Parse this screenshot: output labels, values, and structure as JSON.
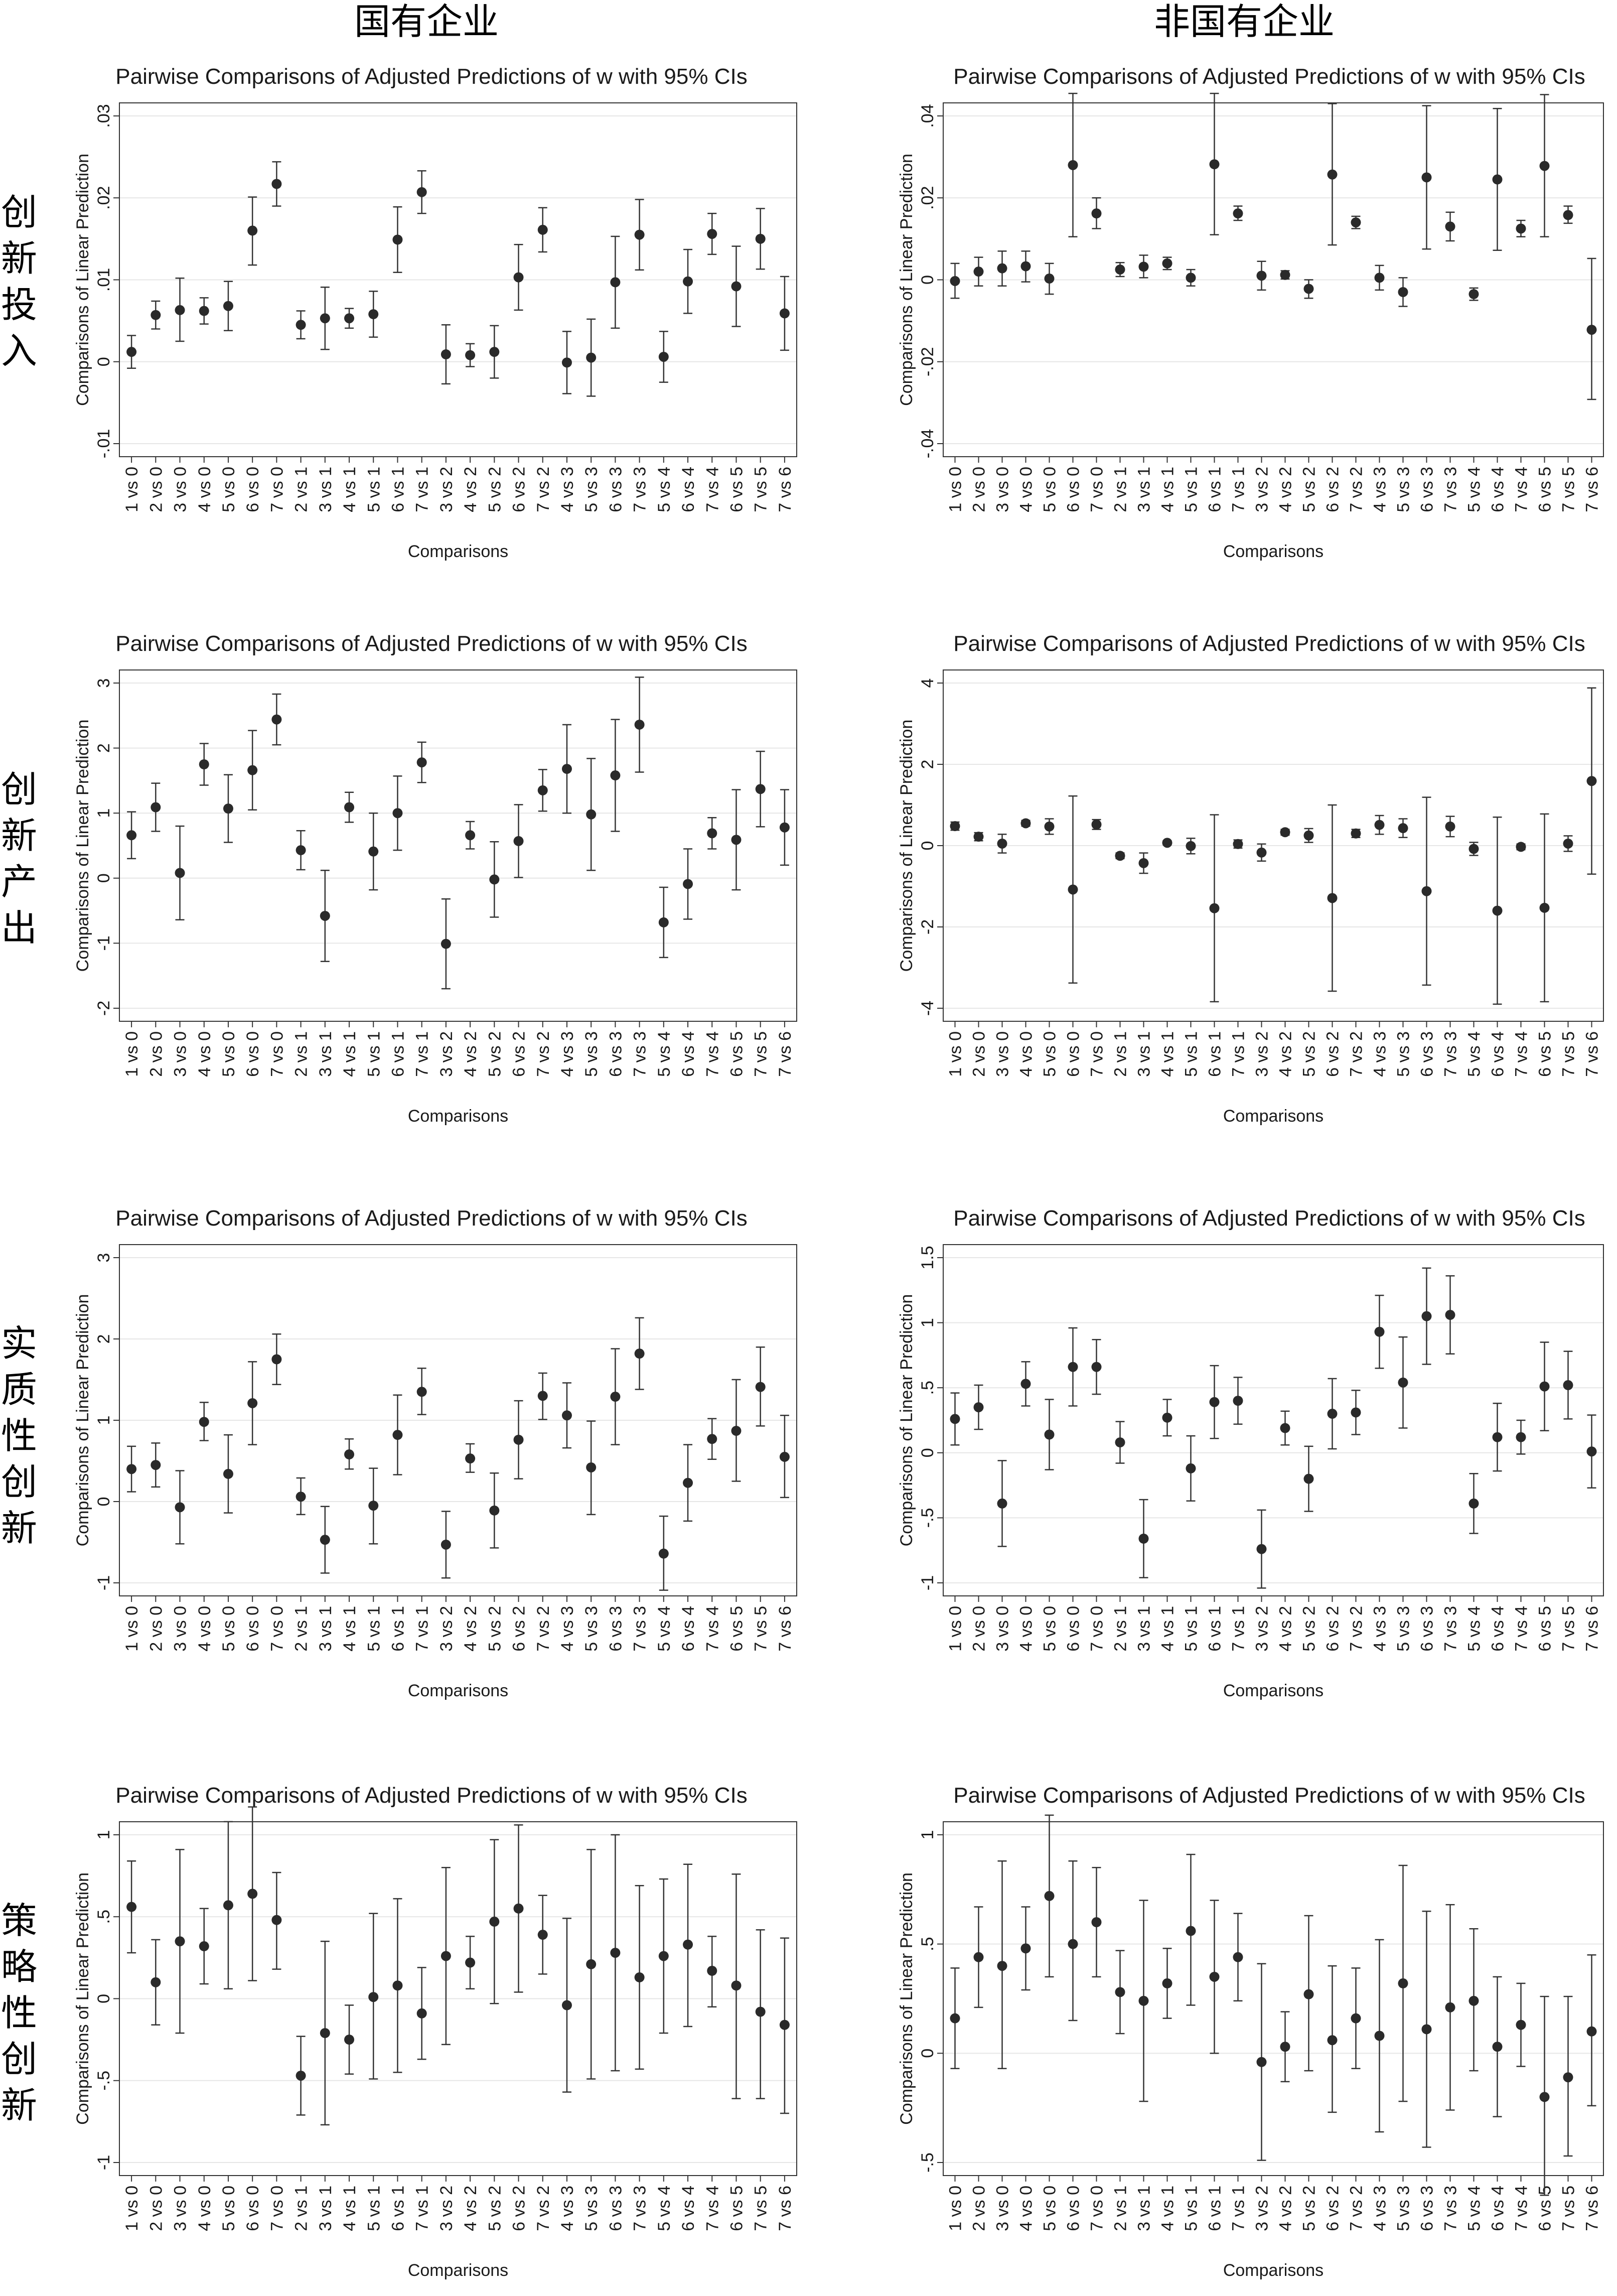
{
  "column_headers": [
    "国有企业",
    "非国有企业"
  ],
  "row_labels": [
    "创新投入",
    "创新产出",
    "实质性创新",
    "策略性创新"
  ],
  "chart_data": [
    {
      "type": "scatter",
      "title": "Pairwise Comparisons of Adjusted Predictions of w with 95% CIs",
      "xlabel": "Comparisons",
      "ylabel": "Comparisons of Linear Prediction",
      "group": "国有企业",
      "row": "创新投入",
      "ylim": [
        -0.01,
        0.03
      ],
      "yticks": [
        -0.01,
        0,
        0.01,
        0.02,
        0.03
      ],
      "ytick_labels": [
        "-.01",
        "0",
        ".01",
        ".02",
        ".03"
      ],
      "categories": [
        "1 vs 0",
        "2 vs 0",
        "3 vs 0",
        "4 vs 0",
        "5 vs 0",
        "6 vs 0",
        "7 vs 0",
        "2 vs 1",
        "3 vs 1",
        "4 vs 1",
        "5 vs 1",
        "6 vs 1",
        "7 vs 1",
        "3 vs 2",
        "4 vs 2",
        "5 vs 2",
        "6 vs 2",
        "7 vs 2",
        "4 vs 3",
        "5 vs 3",
        "6 vs 3",
        "7 vs 3",
        "5 vs 4",
        "6 vs 4",
        "7 vs 4",
        "6 vs 5",
        "7 vs 5",
        "7 vs 6"
      ],
      "values": [
        0.0012,
        0.0057,
        0.0063,
        0.0062,
        0.0068,
        0.016,
        0.0217,
        0.0045,
        0.0053,
        0.0053,
        0.0058,
        0.0149,
        0.0207,
        0.0009,
        0.0008,
        0.0012,
        0.0103,
        0.0161,
        -0.0001,
        0.0005,
        0.0097,
        0.0155,
        0.0006,
        0.0098,
        0.0156,
        0.0092,
        0.015,
        0.0059
      ],
      "lower": [
        -0.0008,
        0.004,
        0.0025,
        0.0046,
        0.0038,
        0.0118,
        0.019,
        0.0028,
        0.0015,
        0.0041,
        0.003,
        0.0109,
        0.0181,
        -0.0027,
        -0.0006,
        -0.002,
        0.0063,
        0.0134,
        -0.0039,
        -0.0042,
        0.0041,
        0.0112,
        -0.0025,
        0.0059,
        0.0131,
        0.0043,
        0.0113,
        0.0014
      ],
      "upper": [
        0.0032,
        0.0074,
        0.0102,
        0.0078,
        0.0098,
        0.0201,
        0.0244,
        0.0062,
        0.0091,
        0.0065,
        0.0086,
        0.0189,
        0.0233,
        0.0045,
        0.0022,
        0.0044,
        0.0143,
        0.0188,
        0.0037,
        0.0052,
        0.0153,
        0.0198,
        0.0037,
        0.0137,
        0.0181,
        0.0141,
        0.0187,
        0.0104
      ]
    },
    {
      "type": "scatter",
      "title": "Pairwise Comparisons of Adjusted Predictions of w with 95% CIs",
      "xlabel": "Comparisons",
      "ylabel": "Comparisons of Linear Prediction",
      "group": "非国有企业",
      "row": "创新投入",
      "ylim": [
        -0.04,
        0.04
      ],
      "yticks": [
        -0.04,
        -0.02,
        0,
        0.02,
        0.04
      ],
      "ytick_labels": [
        "-.04",
        "-.02",
        "0",
        ".02",
        ".04"
      ],
      "categories": [
        "1 vs 0",
        "2 vs 0",
        "3 vs 0",
        "4 vs 0",
        "5 vs 0",
        "6 vs 0",
        "7 vs 0",
        "2 vs 1",
        "3 vs 1",
        "4 vs 1",
        "5 vs 1",
        "6 vs 1",
        "7 vs 1",
        "3 vs 2",
        "4 vs 2",
        "5 vs 2",
        "6 vs 2",
        "7 vs 2",
        "4 vs 3",
        "5 vs 3",
        "6 vs 3",
        "7 vs 3",
        "5 vs 4",
        "6 vs 4",
        "7 vs 4",
        "6 vs 5",
        "7 vs 5",
        "7 vs 6"
      ],
      "values": [
        -0.0003,
        0.002,
        0.0028,
        0.0033,
        0.0003,
        0.028,
        0.0162,
        0.0025,
        0.0032,
        0.004,
        0.0005,
        0.0282,
        0.0162,
        0.001,
        0.0012,
        -0.0022,
        0.0257,
        0.014,
        0.0005,
        -0.003,
        0.025,
        0.013,
        -0.0035,
        0.0245,
        0.0125,
        0.0278,
        0.0158,
        -0.0122
      ],
      "lower": [
        -0.0045,
        -0.0015,
        -0.0015,
        -0.0005,
        -0.0035,
        0.0105,
        0.0125,
        0.0008,
        0.0005,
        0.0025,
        -0.0015,
        0.011,
        0.0145,
        -0.0025,
        0.0002,
        -0.0045,
        0.0085,
        0.0125,
        -0.0025,
        -0.0065,
        0.0075,
        0.0095,
        -0.005,
        0.0072,
        0.0105,
        0.0105,
        0.0138,
        -0.0292
      ],
      "upper": [
        0.004,
        0.0055,
        0.007,
        0.007,
        0.004,
        0.0455,
        0.02,
        0.0042,
        0.006,
        0.0055,
        0.0025,
        0.0455,
        0.018,
        0.0045,
        0.0022,
        0.0,
        0.043,
        0.0155,
        0.0035,
        0.0005,
        0.0425,
        0.0165,
        -0.002,
        0.0418,
        0.0145,
        0.0452,
        0.018,
        0.0052
      ]
    },
    {
      "type": "scatter",
      "title": "Pairwise Comparisons of Adjusted Predictions of w with 95% CIs",
      "xlabel": "Comparisons",
      "ylabel": "Comparisons of Linear Prediction",
      "group": "国有企业",
      "row": "创新产出",
      "ylim": [
        -2,
        3
      ],
      "yticks": [
        -2,
        -1,
        0,
        1,
        2,
        3
      ],
      "ytick_labels": [
        "-2",
        "-1",
        "0",
        "1",
        "2",
        "3"
      ],
      "categories": [
        "1 vs 0",
        "2 vs 0",
        "3 vs 0",
        "4 vs 0",
        "5 vs 0",
        "6 vs 0",
        "7 vs 0",
        "2 vs 1",
        "3 vs 1",
        "4 vs 1",
        "5 vs 1",
        "6 vs 1",
        "7 vs 1",
        "3 vs 2",
        "4 vs 2",
        "5 vs 2",
        "6 vs 2",
        "7 vs 2",
        "4 vs 3",
        "5 vs 3",
        "6 vs 3",
        "7 vs 3",
        "5 vs 4",
        "6 vs 4",
        "7 vs 4",
        "6 vs 5",
        "7 vs 5",
        "7 vs 6"
      ],
      "values": [
        0.66,
        1.09,
        0.08,
        1.75,
        1.07,
        1.66,
        2.44,
        0.43,
        -0.58,
        1.09,
        0.41,
        1.0,
        1.78,
        -1.01,
        0.66,
        -0.02,
        0.57,
        1.35,
        1.68,
        0.98,
        1.58,
        2.36,
        -0.68,
        -0.09,
        0.69,
        0.59,
        1.37,
        0.78
      ],
      "lower": [
        0.3,
        0.72,
        -0.64,
        1.43,
        0.55,
        1.05,
        2.05,
        0.13,
        -1.28,
        0.86,
        -0.18,
        0.43,
        1.47,
        -1.7,
        0.45,
        -0.6,
        0.01,
        1.03,
        1.0,
        0.12,
        0.72,
        1.63,
        -1.22,
        -0.63,
        0.45,
        -0.18,
        0.79,
        0.2
      ],
      "upper": [
        1.02,
        1.46,
        0.8,
        2.07,
        1.59,
        2.27,
        2.83,
        0.73,
        0.12,
        1.32,
        1.0,
        1.57,
        2.09,
        -0.32,
        0.87,
        0.56,
        1.13,
        1.67,
        2.36,
        1.84,
        2.44,
        3.09,
        -0.14,
        0.45,
        0.93,
        1.36,
        1.95,
        1.36
      ]
    },
    {
      "type": "scatter",
      "title": "Pairwise Comparisons of Adjusted Predictions of w with 95% CIs",
      "xlabel": "Comparisons",
      "ylabel": "Comparisons of Linear Prediction",
      "group": "非国有企业",
      "row": "创新产出",
      "ylim": [
        -4,
        4
      ],
      "yticks": [
        -4,
        -2,
        0,
        2,
        4
      ],
      "ytick_labels": [
        "-4",
        "-2",
        "0",
        "2",
        "4"
      ],
      "categories": [
        "1 vs 0",
        "2 vs 0",
        "3 vs 0",
        "4 vs 0",
        "5 vs 0",
        "6 vs 0",
        "7 vs 0",
        "2 vs 1",
        "3 vs 1",
        "4 vs 1",
        "5 vs 1",
        "6 vs 1",
        "7 vs 1",
        "3 vs 2",
        "4 vs 2",
        "5 vs 2",
        "6 vs 2",
        "7 vs 2",
        "4 vs 3",
        "5 vs 3",
        "6 vs 3",
        "7 vs 3",
        "5 vs 4",
        "6 vs 4",
        "7 vs 4",
        "6 vs 5",
        "7 vs 5",
        "7 vs 6"
      ],
      "values": [
        0.48,
        0.22,
        0.05,
        0.55,
        0.47,
        -1.08,
        0.52,
        -0.25,
        -0.43,
        0.07,
        -0.01,
        -1.54,
        0.04,
        -0.17,
        0.33,
        0.25,
        -1.29,
        0.3,
        0.51,
        0.43,
        -1.12,
        0.47,
        -0.08,
        -1.6,
        -0.03,
        -1.53,
        0.05,
        1.59
      ],
      "lower": [
        0.38,
        0.12,
        -0.18,
        0.48,
        0.28,
        -3.38,
        0.4,
        -0.32,
        -0.68,
        0.02,
        -0.2,
        -3.84,
        -0.06,
        -0.38,
        0.26,
        0.08,
        -3.58,
        0.2,
        0.28,
        0.2,
        -3.43,
        0.22,
        -0.24,
        -3.9,
        -0.1,
        -3.84,
        -0.14,
        -0.7
      ],
      "upper": [
        0.58,
        0.32,
        0.28,
        0.62,
        0.66,
        1.22,
        0.64,
        -0.18,
        -0.18,
        0.12,
        0.18,
        0.76,
        0.14,
        0.04,
        0.4,
        0.42,
        1.0,
        0.4,
        0.74,
        0.66,
        1.19,
        0.72,
        0.08,
        0.7,
        0.04,
        0.78,
        0.24,
        3.88
      ]
    },
    {
      "type": "scatter",
      "title": "Pairwise Comparisons of Adjusted Predictions of w with 95% CIs",
      "xlabel": "Comparisons",
      "ylabel": "Comparisons of Linear Prediction",
      "group": "国有企业",
      "row": "实质性创新",
      "ylim": [
        -1,
        3
      ],
      "yticks": [
        -1,
        0,
        1,
        2,
        3
      ],
      "ytick_labels": [
        "-1",
        "0",
        "1",
        "2",
        "3"
      ],
      "categories": [
        "1 vs 0",
        "2 vs 0",
        "3 vs 0",
        "4 vs 0",
        "5 vs 0",
        "6 vs 0",
        "7 vs 0",
        "2 vs 1",
        "3 vs 1",
        "4 vs 1",
        "5 vs 1",
        "6 vs 1",
        "7 vs 1",
        "3 vs 2",
        "4 vs 2",
        "5 vs 2",
        "6 vs 2",
        "7 vs 2",
        "4 vs 3",
        "5 vs 3",
        "6 vs 3",
        "7 vs 3",
        "5 vs 4",
        "6 vs 4",
        "7 vs 4",
        "6 vs 5",
        "7 vs 5",
        "7 vs 6"
      ],
      "values": [
        0.4,
        0.45,
        -0.07,
        0.98,
        0.34,
        1.21,
        1.75,
        0.06,
        -0.47,
        0.58,
        -0.05,
        0.82,
        1.35,
        -0.53,
        0.53,
        -0.11,
        0.76,
        1.3,
        1.06,
        0.42,
        1.29,
        1.82,
        -0.64,
        0.23,
        0.77,
        0.87,
        1.41,
        0.55
      ],
      "lower": [
        0.12,
        0.18,
        -0.52,
        0.75,
        -0.14,
        0.7,
        1.44,
        -0.16,
        -0.88,
        0.4,
        -0.52,
        0.33,
        1.07,
        -0.94,
        0.36,
        -0.57,
        0.28,
        1.01,
        0.66,
        -0.16,
        0.7,
        1.38,
        -1.09,
        -0.24,
        0.52,
        0.25,
        0.93,
        0.05
      ],
      "upper": [
        0.68,
        0.72,
        0.38,
        1.22,
        0.82,
        1.72,
        2.06,
        0.29,
        -0.06,
        0.77,
        0.41,
        1.31,
        1.64,
        -0.12,
        0.71,
        0.35,
        1.24,
        1.58,
        1.46,
        0.99,
        1.88,
        2.26,
        -0.18,
        0.7,
        1.02,
        1.5,
        1.9,
        1.06
      ]
    },
    {
      "type": "scatter",
      "title": "Pairwise Comparisons of Adjusted Predictions of w with 95% CIs",
      "xlabel": "Comparisons",
      "ylabel": "Comparisons of Linear Prediction",
      "group": "非国有企业",
      "row": "实质性创新",
      "ylim": [
        -1,
        1.5
      ],
      "yticks": [
        -1,
        -0.5,
        0,
        0.5,
        1,
        1.5
      ],
      "ytick_labels": [
        "-1",
        "-.5",
        "0",
        ".5",
        "1",
        "1.5"
      ],
      "categories": [
        "1 vs 0",
        "2 vs 0",
        "3 vs 0",
        "4 vs 0",
        "5 vs 0",
        "6 vs 0",
        "7 vs 0",
        "2 vs 1",
        "3 vs 1",
        "4 vs 1",
        "5 vs 1",
        "6 vs 1",
        "7 vs 1",
        "3 vs 2",
        "4 vs 2",
        "5 vs 2",
        "6 vs 2",
        "7 vs 2",
        "4 vs 3",
        "5 vs 3",
        "6 vs 3",
        "7 vs 3",
        "5 vs 4",
        "6 vs 4",
        "7 vs 4",
        "6 vs 5",
        "7 vs 5",
        "7 vs 6"
      ],
      "values": [
        0.26,
        0.35,
        -0.39,
        0.53,
        0.14,
        0.66,
        0.66,
        0.08,
        -0.66,
        0.27,
        -0.12,
        0.39,
        0.4,
        -0.74,
        0.19,
        -0.2,
        0.3,
        0.31,
        0.93,
        0.54,
        1.05,
        1.06,
        -0.39,
        0.12,
        0.12,
        0.51,
        0.52,
        0.01
      ],
      "lower": [
        0.06,
        0.18,
        -0.72,
        0.36,
        -0.13,
        0.36,
        0.45,
        -0.08,
        -0.96,
        0.13,
        -0.37,
        0.11,
        0.22,
        -1.04,
        0.06,
        -0.45,
        0.03,
        0.14,
        0.65,
        0.19,
        0.68,
        0.76,
        -0.62,
        -0.14,
        -0.01,
        0.17,
        0.26,
        -0.27
      ],
      "upper": [
        0.46,
        0.52,
        -0.06,
        0.7,
        0.41,
        0.96,
        0.87,
        0.24,
        -0.36,
        0.41,
        0.13,
        0.67,
        0.58,
        -0.44,
        0.32,
        0.05,
        0.57,
        0.48,
        1.21,
        0.89,
        1.42,
        1.36,
        -0.16,
        0.38,
        0.25,
        0.85,
        0.78,
        0.29
      ]
    },
    {
      "type": "scatter",
      "title": "Pairwise Comparisons of Adjusted Predictions of w with 95% CIs",
      "xlabel": "Comparisons",
      "ylabel": "Comparisons of Linear Prediction",
      "group": "国有企业",
      "row": "策略性创新",
      "ylim": [
        -1,
        1
      ],
      "yticks": [
        -1,
        -0.5,
        0,
        0.5,
        1
      ],
      "ytick_labels": [
        "-1",
        "-.5",
        "0",
        ".5",
        "1"
      ],
      "categories": [
        "1 vs 0",
        "2 vs 0",
        "3 vs 0",
        "4 vs 0",
        "5 vs 0",
        "6 vs 0",
        "7 vs 0",
        "2 vs 1",
        "3 vs 1",
        "4 vs 1",
        "5 vs 1",
        "6 vs 1",
        "7 vs 1",
        "3 vs 2",
        "4 vs 2",
        "5 vs 2",
        "6 vs 2",
        "7 vs 2",
        "4 vs 3",
        "5 vs 3",
        "6 vs 3",
        "7 vs 3",
        "5 vs 4",
        "6 vs 4",
        "7 vs 4",
        "6 vs 5",
        "7 vs 5",
        "7 vs 6"
      ],
      "values": [
        0.56,
        0.1,
        0.35,
        0.32,
        0.57,
        0.64,
        0.48,
        -0.47,
        -0.21,
        -0.25,
        0.01,
        0.08,
        -0.09,
        0.26,
        0.22,
        0.47,
        0.55,
        0.39,
        -0.04,
        0.21,
        0.28,
        0.13,
        0.26,
        0.33,
        0.17,
        0.08,
        -0.08,
        -0.16
      ],
      "lower": [
        0.28,
        -0.16,
        -0.21,
        0.09,
        0.06,
        0.11,
        0.18,
        -0.71,
        -0.77,
        -0.46,
        -0.49,
        -0.45,
        -0.37,
        -0.28,
        0.06,
        -0.03,
        0.04,
        0.15,
        -0.57,
        -0.49,
        -0.44,
        -0.43,
        -0.21,
        -0.17,
        -0.05,
        -0.61,
        -0.61,
        -0.7
      ],
      "upper": [
        0.84,
        0.36,
        0.91,
        0.55,
        1.08,
        1.17,
        0.77,
        -0.23,
        0.35,
        -0.04,
        0.52,
        0.61,
        0.19,
        0.8,
        0.38,
        0.97,
        1.06,
        0.63,
        0.49,
        0.91,
        1.0,
        0.69,
        0.73,
        0.82,
        0.38,
        0.76,
        0.42,
        0.37
      ]
    },
    {
      "type": "scatter",
      "title": "Pairwise Comparisons of Adjusted Predictions of w with 95% CIs",
      "xlabel": "Comparisons",
      "ylabel": "Comparisons of Linear Prediction",
      "group": "非国有企业",
      "row": "策略性创新",
      "ylim": [
        -0.5,
        1
      ],
      "yticks": [
        -0.5,
        0,
        0.5,
        1
      ],
      "ytick_labels": [
        "-.5",
        "0",
        ".5",
        "1"
      ],
      "categories": [
        "1 vs 0",
        "2 vs 0",
        "3 vs 0",
        "4 vs 0",
        "5 vs 0",
        "6 vs 0",
        "7 vs 0",
        "2 vs 1",
        "3 vs 1",
        "4 vs 1",
        "5 vs 1",
        "6 vs 1",
        "7 vs 1",
        "3 vs 2",
        "4 vs 2",
        "5 vs 2",
        "6 vs 2",
        "7 vs 2",
        "4 vs 3",
        "5 vs 3",
        "6 vs 3",
        "7 vs 3",
        "5 vs 4",
        "6 vs 4",
        "7 vs 4",
        "6 vs 5",
        "7 vs 5",
        "7 vs 6"
      ],
      "values": [
        0.16,
        0.44,
        0.4,
        0.48,
        0.72,
        0.5,
        0.6,
        0.28,
        0.24,
        0.32,
        0.56,
        0.35,
        0.44,
        -0.04,
        0.03,
        0.27,
        0.06,
        0.16,
        0.08,
        0.32,
        0.11,
        0.21,
        0.24,
        0.03,
        0.13,
        -0.2,
        -0.11,
        0.1
      ],
      "lower": [
        -0.07,
        0.21,
        -0.07,
        0.29,
        0.35,
        0.15,
        0.35,
        0.09,
        -0.22,
        0.16,
        0.22,
        0.0,
        0.24,
        -0.49,
        -0.13,
        -0.08,
        -0.27,
        -0.07,
        -0.36,
        -0.22,
        -0.43,
        -0.26,
        -0.08,
        -0.29,
        -0.06,
        -0.65,
        -0.47,
        -0.24
      ],
      "upper": [
        0.39,
        0.67,
        0.88,
        0.67,
        1.09,
        0.88,
        0.85,
        0.47,
        0.7,
        0.48,
        0.91,
        0.7,
        0.64,
        0.41,
        0.19,
        0.63,
        0.4,
        0.39,
        0.52,
        0.86,
        0.65,
        0.68,
        0.57,
        0.35,
        0.32,
        0.26,
        0.26,
        0.45
      ]
    }
  ]
}
